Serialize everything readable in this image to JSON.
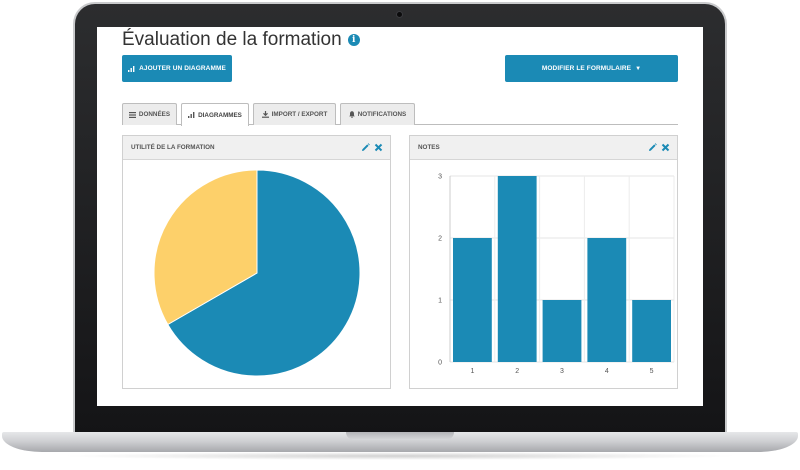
{
  "page": {
    "title": "Évaluation de la formation"
  },
  "toolbar": {
    "add_chart_label": "AJOUTER UN DIAGRAMME",
    "edit_form_label": "MODIFIER LE FORMULAIRE"
  },
  "tabs": [
    {
      "label": "DONNÉES",
      "icon": "list-icon",
      "active": false
    },
    {
      "label": "DIAGRAMMES",
      "icon": "bar-chart-icon",
      "active": true
    },
    {
      "label": "IMPORT / EXPORT",
      "icon": "download-icon",
      "active": false
    },
    {
      "label": "NOTIFICATIONS",
      "icon": "bell-icon",
      "active": false
    }
  ],
  "panels": {
    "left": {
      "title": "UTILITÉ DE LA FORMATION"
    },
    "right": {
      "title": "NOTES"
    }
  },
  "colors": {
    "primary": "#1b8ab5",
    "secondary": "#fdd06a"
  },
  "chart_data": [
    {
      "type": "pie",
      "title": "UTILITÉ DE LA FORMATION",
      "values": [
        2,
        1
      ],
      "colors": [
        "#1b8ab5",
        "#fdd06a"
      ]
    },
    {
      "type": "bar",
      "title": "NOTES",
      "categories": [
        "1",
        "2",
        "3",
        "4",
        "5"
      ],
      "values": [
        2,
        3,
        1,
        2,
        1
      ],
      "ylim": [
        0,
        3
      ],
      "yticks": [
        "0",
        "1",
        "2",
        "3"
      ],
      "grid": true,
      "color": "#1b8ab5"
    }
  ]
}
